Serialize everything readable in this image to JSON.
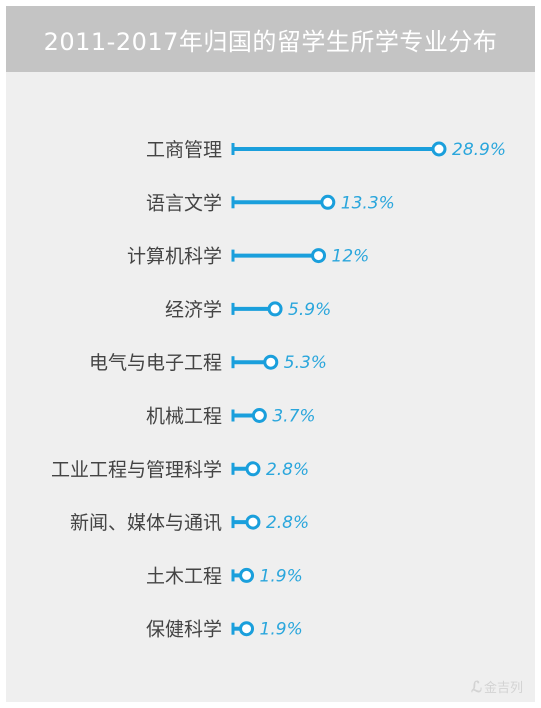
{
  "chart_data": {
    "type": "bar",
    "title": "2011-2017年归国的留学生所学专业分布",
    "categories": [
      "工商管理",
      "语言文学",
      "计算机科学",
      "经济学",
      "电气与电子工程",
      "机械工程",
      "工业工程与管理科学",
      "新闻、媒体与通讯",
      "土木工程",
      "保健科学"
    ],
    "values": [
      28.9,
      13.3,
      12,
      5.9,
      5.3,
      3.7,
      2.8,
      2.8,
      1.9,
      1.9
    ],
    "value_labels": [
      "28.9%",
      "13.3%",
      "12%",
      "5.9%",
      "5.3%",
      "3.7%",
      "2.8%",
      "2.8%",
      "1.9%",
      "1.9%"
    ],
    "unit": "%",
    "xlim": [
      0,
      28.9
    ],
    "grid": false,
    "legend": "none",
    "colors": {
      "bar": "#1a9fdc",
      "label": "#2aa6dc",
      "header_bg": "#c4c4c4",
      "panel_bg": "#efefef"
    }
  },
  "watermark": {
    "text": "金吉列"
  }
}
